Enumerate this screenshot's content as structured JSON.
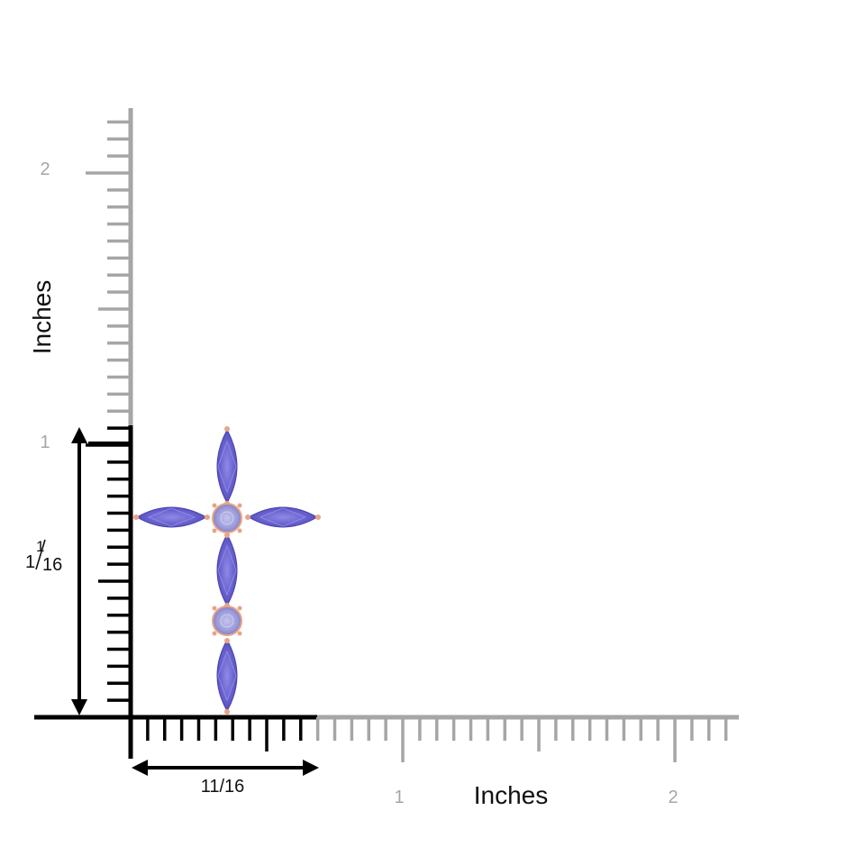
{
  "figure": {
    "x_axis_title": "Inches",
    "y_axis_title": "Inches",
    "x_ticks": [
      "1",
      "2"
    ],
    "y_ticks": [
      "1",
      "2"
    ],
    "width_dimension": "11/16",
    "height_dimension": {
      "whole": "1",
      "numerator": "1",
      "denominator": "16"
    }
  },
  "colors": {
    "ruler_gray": "#a6a6a6",
    "ruler_black": "#000000",
    "gem_tanzanite": "#6a63cf",
    "gem_round_tanzanite": "#9b9ad8",
    "metal_rose_gold": "#e7a486"
  },
  "product": {
    "name": "tanzanite marquise cross pendant",
    "marquise_stones": 5,
    "round_stones": 2
  }
}
